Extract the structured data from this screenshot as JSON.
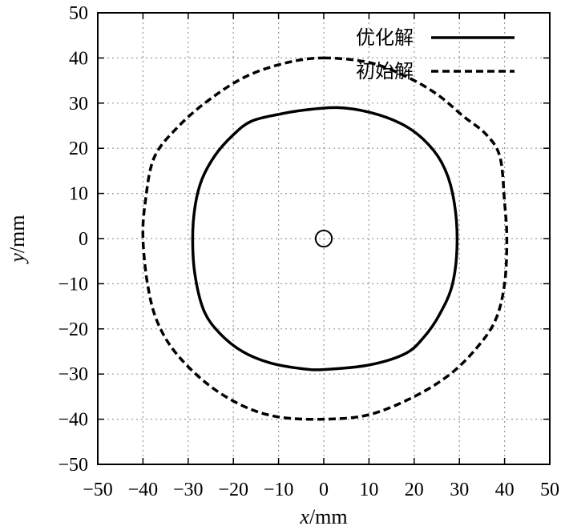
{
  "chart_data": {
    "type": "line",
    "xlabel": {
      "var": "x",
      "unit": "/mm"
    },
    "ylabel": {
      "var": "y",
      "unit": "/mm"
    },
    "xlim": [
      -50,
      50
    ],
    "ylim": [
      -50,
      50
    ],
    "xticks": [
      -50,
      -40,
      -30,
      -20,
      -10,
      0,
      10,
      20,
      30,
      40,
      50
    ],
    "yticks": [
      -50,
      -40,
      -30,
      -20,
      -10,
      0,
      10,
      20,
      30,
      40,
      50
    ],
    "xtick_labels": [
      "−50",
      "−40",
      "−30",
      "−20",
      "−10",
      "0",
      "10",
      "20",
      "30",
      "40",
      "50"
    ],
    "ytick_labels": [
      "−50",
      "−40",
      "−30",
      "−20",
      "−10",
      "0",
      "10",
      "20",
      "30",
      "40",
      "50"
    ],
    "grid": true,
    "legend_position": "top-right",
    "series": [
      {
        "name": "优化解",
        "style": "solid",
        "points": [
          [
            3,
            29
          ],
          [
            10,
            28
          ],
          [
            17,
            25.5
          ],
          [
            22,
            22
          ],
          [
            26,
            17
          ],
          [
            28.5,
            10
          ],
          [
            29.5,
            0
          ],
          [
            28.5,
            -10
          ],
          [
            25.5,
            -17
          ],
          [
            22,
            -22
          ],
          [
            18,
            -25.5
          ],
          [
            10,
            -28
          ],
          [
            0,
            -29
          ],
          [
            -5,
            -28.8
          ],
          [
            -12,
            -27.5
          ],
          [
            -18,
            -25
          ],
          [
            -23,
            -21
          ],
          [
            -26.5,
            -16
          ],
          [
            -28.5,
            -8
          ],
          [
            -29,
            0
          ],
          [
            -28.5,
            7
          ],
          [
            -27,
            13
          ],
          [
            -24,
            18.5
          ],
          [
            -20,
            23
          ],
          [
            -16,
            26
          ],
          [
            -10,
            27.5
          ],
          [
            -4,
            28.5
          ],
          [
            3,
            29
          ]
        ]
      },
      {
        "name": "初始解",
        "style": "dashed",
        "points": [
          [
            0,
            40
          ],
          [
            10,
            39
          ],
          [
            18,
            36
          ],
          [
            25,
            32
          ],
          [
            31,
            27
          ],
          [
            36,
            23
          ],
          [
            39,
            18
          ],
          [
            40,
            8
          ],
          [
            40.5,
            0
          ],
          [
            40,
            -10
          ],
          [
            38,
            -18
          ],
          [
            34,
            -24
          ],
          [
            28,
            -30
          ],
          [
            20,
            -35
          ],
          [
            10,
            -39
          ],
          [
            0,
            -40
          ],
          [
            -10,
            -39.5
          ],
          [
            -18,
            -37
          ],
          [
            -26,
            -32
          ],
          [
            -33,
            -25
          ],
          [
            -37,
            -18
          ],
          [
            -39,
            -10
          ],
          [
            -40,
            0
          ],
          [
            -39.5,
            8
          ],
          [
            -37.5,
            18
          ],
          [
            -32,
            25
          ],
          [
            -25,
            31
          ],
          [
            -17,
            36
          ],
          [
            -8,
            39
          ],
          [
            0,
            40
          ]
        ]
      },
      {
        "name": "",
        "style": "solid-thin",
        "shape": "circle",
        "center": [
          0,
          0
        ],
        "radius": 1.8
      }
    ]
  }
}
